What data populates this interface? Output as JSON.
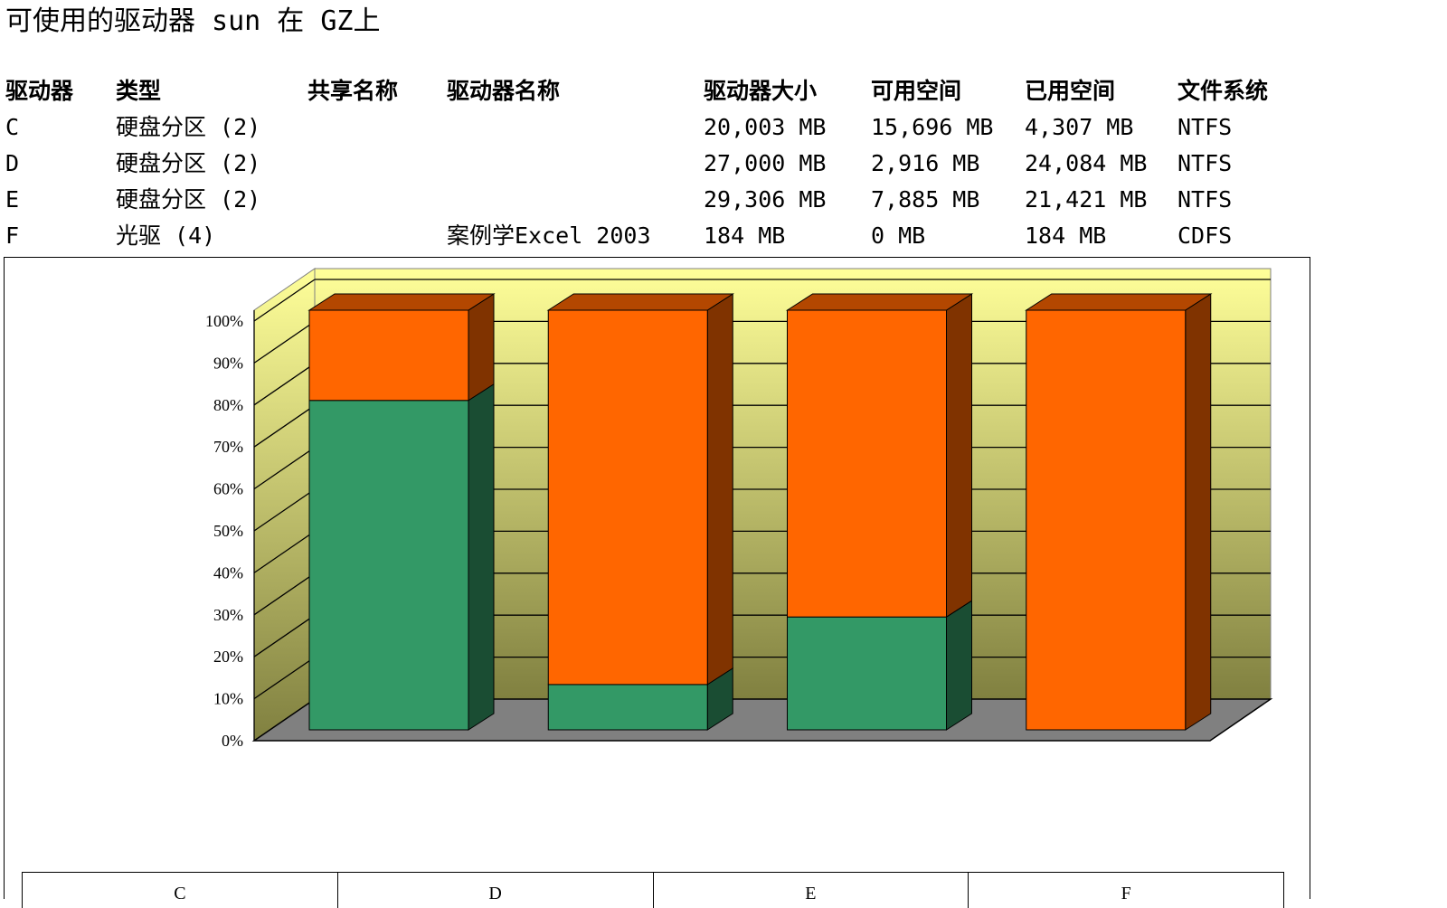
{
  "title": "可使用的驱动器 sun 在 GZ上",
  "table": {
    "headers": [
      "驱动器",
      "类型",
      "共享名称",
      "驱动器名称",
      "驱动器大小",
      "可用空间",
      "已用空间",
      "文件系统"
    ],
    "rows": [
      [
        "C",
        "硬盘分区 (2)",
        "",
        "",
        "20,003 MB",
        "15,696 MB",
        "4,307 MB",
        "NTFS"
      ],
      [
        "D",
        "硬盘分区 (2)",
        "",
        "",
        "27,000 MB",
        "2,916 MB",
        "24,084 MB",
        "NTFS"
      ],
      [
        "E",
        "硬盘分区 (2)",
        "",
        "",
        "29,306 MB",
        "7,885 MB",
        "21,421 MB",
        "NTFS"
      ],
      [
        "F",
        "光驱 (4)",
        "",
        "案例学Excel 2003",
        "184 MB",
        "0 MB",
        "184 MB",
        "CDFS"
      ]
    ]
  },
  "chart_data": {
    "type": "bar",
    "stacked": "percent",
    "categories": [
      "C",
      "D",
      "E",
      "F"
    ],
    "series": [
      {
        "values": [
          78.5,
          10.8,
          26.9,
          0
        ],
        "color": "#339966"
      },
      {
        "values": [
          21.5,
          89.2,
          73.1,
          100
        ],
        "color": "#ff6600"
      }
    ],
    "yticks": [
      "0%",
      "10%",
      "20%",
      "30%",
      "40%",
      "50%",
      "60%",
      "70%",
      "80%",
      "90%",
      "100%"
    ],
    "ylim": [
      0,
      100
    ],
    "wall_gradient": [
      "#ffff99",
      "#808040"
    ],
    "floor_color": "#808080",
    "grid": true
  },
  "legend_table": {
    "cells": [
      "C",
      "D",
      "E",
      "F"
    ]
  }
}
